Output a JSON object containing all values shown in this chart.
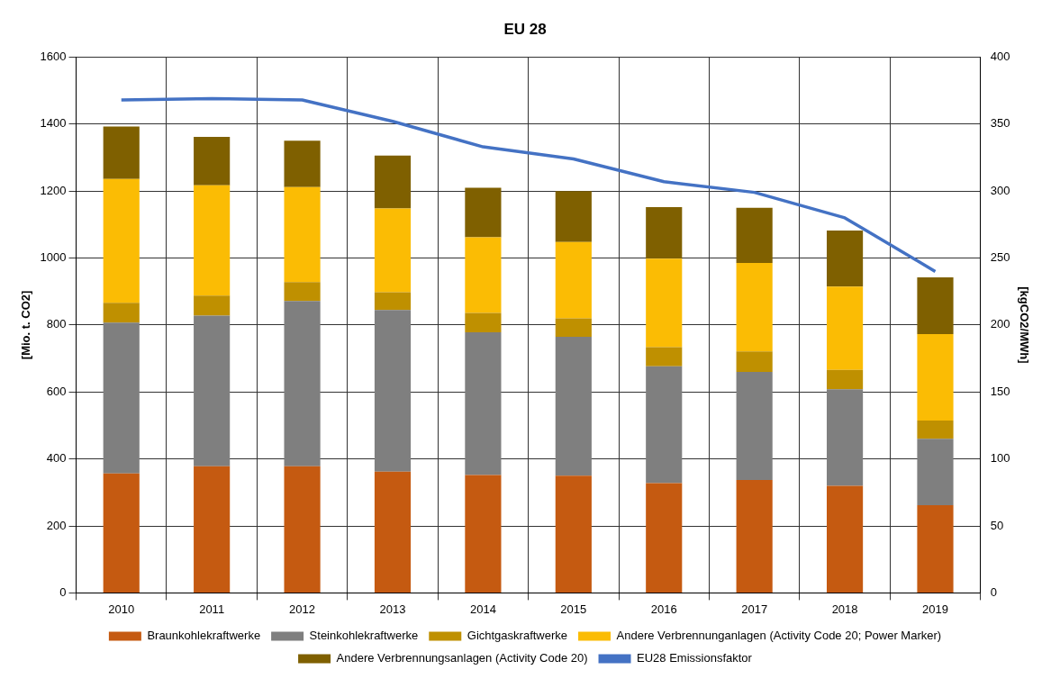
{
  "chart_data": {
    "type": "bar",
    "title": "EU 28",
    "ylabel": "[Mio. t. CO2]",
    "y2label": "[kgCO2/MWh]",
    "categories": [
      "2010",
      "2011",
      "2012",
      "2013",
      "2014",
      "2015",
      "2016",
      "2017",
      "2018",
      "2019"
    ],
    "stacked": true,
    "ylim": [
      0,
      1600
    ],
    "yticks": [
      0,
      200,
      400,
      600,
      800,
      1000,
      1200,
      1400,
      1600
    ],
    "y2lim": [
      0,
      400
    ],
    "y2ticks": [
      0,
      50,
      100,
      150,
      200,
      250,
      300,
      350,
      400
    ],
    "grid": true,
    "legend": "bottom",
    "marker": "none",
    "series": [
      {
        "name": "Braunkohlekraftwerke",
        "color": "#c55a11",
        "values": [
          357,
          378,
          378,
          362,
          352,
          350,
          328,
          337,
          320,
          262
        ]
      },
      {
        "name": "Steinkohlekraftwerke",
        "color": "#7f7f7f",
        "values": [
          450,
          450,
          494,
          483,
          426,
          415,
          349,
          323,
          288,
          198
        ]
      },
      {
        "name": "Gichtgaskraftwerke",
        "color": "#bf9000",
        "values": [
          59,
          60,
          56,
          53,
          58,
          55,
          57,
          61,
          58,
          55
        ]
      },
      {
        "name": "Andere Verbrennunganlagen (Activity Code 20; Power Marker)",
        "color": "#fbbc04",
        "values": [
          370,
          329,
          284,
          250,
          226,
          228,
          264,
          264,
          249,
          258
        ]
      },
      {
        "name": "Andere Verbrennungsanlagen (Activity Code 20)",
        "color": "#7f6000",
        "values": [
          157,
          145,
          138,
          158,
          148,
          152,
          154,
          165,
          167,
          169
        ]
      },
      {
        "name": "EU28 Emissionsfaktor",
        "type": "line",
        "axis": "y2",
        "color": "#4472c4",
        "values": [
          368,
          369,
          368,
          352,
          333,
          324,
          307,
          299,
          280,
          240
        ]
      }
    ]
  }
}
